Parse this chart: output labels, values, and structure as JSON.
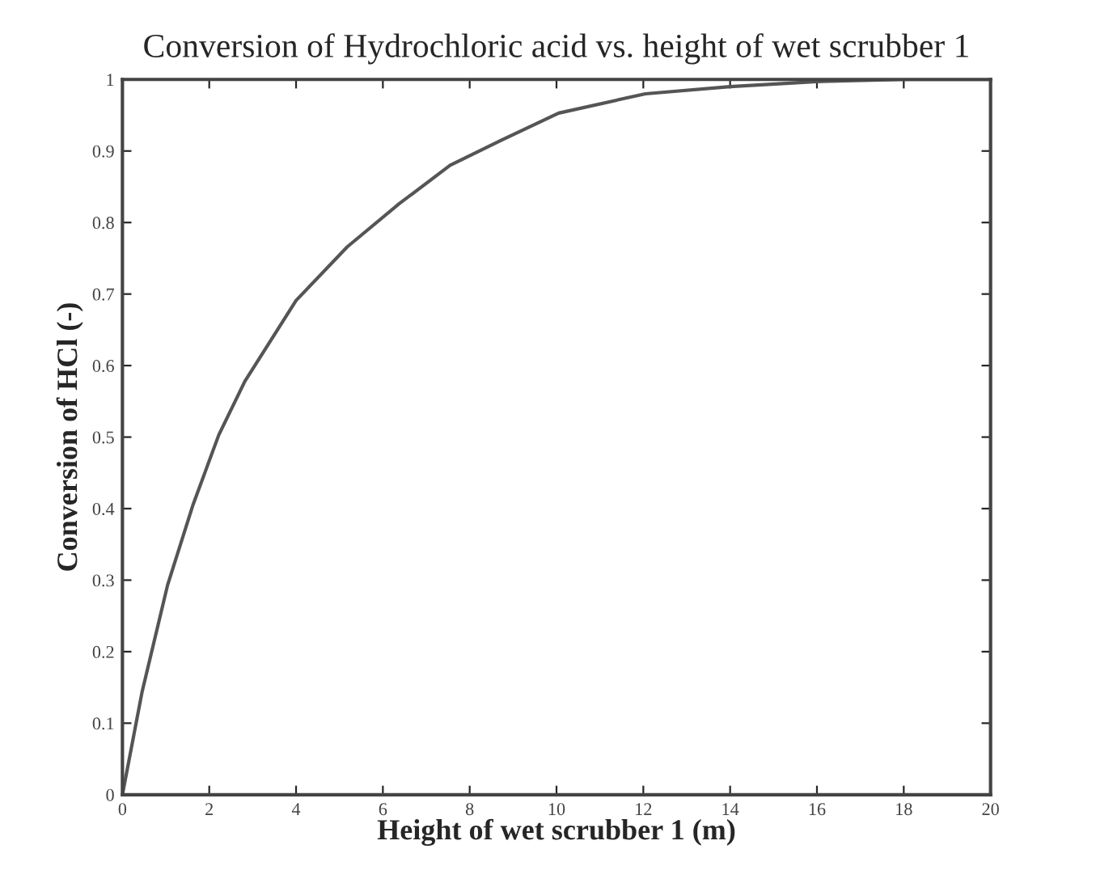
{
  "chart_data": {
    "type": "line",
    "title": "Conversion of Hydrochloric acid vs. height of wet scrubber 1",
    "xlabel": "Height of wet scrubber 1 (m)",
    "ylabel": "Conversion of HCl (-)",
    "series": [
      {
        "color": "#555555",
        "x": [
          0,
          0.45,
          1.04,
          1.63,
          2.22,
          2.82,
          4.0,
          5.18,
          6.37,
          7.55,
          8.73,
          10.05,
          12.05,
          14.0,
          16.0,
          18.0,
          20.0
        ],
        "values": [
          0,
          0.143,
          0.293,
          0.406,
          0.503,
          0.578,
          0.691,
          0.766,
          0.826,
          0.88,
          0.915,
          0.953,
          0.98,
          0.99,
          0.997,
          1.0,
          1.0
        ]
      }
    ],
    "xlim": [
      0,
      20
    ],
    "ylim": [
      0,
      1
    ],
    "xticks": [
      0,
      2,
      4,
      6,
      8,
      10,
      12,
      14,
      16,
      18,
      20
    ],
    "yticks": [
      0,
      0.1,
      0.2,
      0.3,
      0.4,
      0.5,
      0.6,
      0.7,
      0.8,
      0.9,
      1
    ],
    "grid": false,
    "legend": false
  }
}
